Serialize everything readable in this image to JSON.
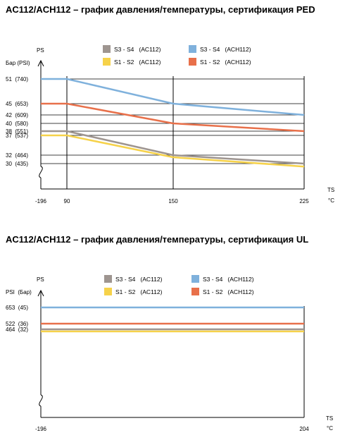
{
  "colors": {
    "s34_ac112": "#9e9590",
    "s34_ach112": "#7fb1dc",
    "s12_ac112": "#f6d24a",
    "s12_ach112": "#e8704a",
    "axis": "#000000"
  },
  "chart_data": [
    {
      "type": "line",
      "title": "AC112/ACH112 – график давления/температуры, сертификация PED",
      "y_axis_name": "PS",
      "y_axis_unit": "Бар (PSI)",
      "x_axis_name": "TS",
      "x_axis_unit": "°C",
      "x_ticks": [
        {
          "value": -196,
          "label": "-196"
        },
        {
          "value": 90,
          "label": "90"
        },
        {
          "value": 150,
          "label": "150"
        },
        {
          "value": 225,
          "label": "225"
        }
      ],
      "y_ticks": [
        {
          "value": 51,
          "label": "51  (740)"
        },
        {
          "value": 45,
          "label": "45  (653)"
        },
        {
          "value": 42,
          "label": "42  (609)"
        },
        {
          "value": 40,
          "label": "40  (580)"
        },
        {
          "value": 38,
          "label": "38  (551)"
        },
        {
          "value": 37,
          "label": "37  (537)"
        },
        {
          "value": 32,
          "label": "32  (464)"
        },
        {
          "value": 30,
          "label": "30  (435)"
        }
      ],
      "legend": [
        {
          "label": "S3 - S4   (AC112)",
          "color_key": "s34_ac112"
        },
        {
          "label": "S3 - S4   (ACH112)",
          "color_key": "s34_ach112"
        },
        {
          "label": "S1 - S2   (AC112)",
          "color_key": "s12_ac112"
        },
        {
          "label": "S1 - S2   (ACH112)",
          "color_key": "s12_ach112"
        }
      ],
      "series": [
        {
          "color_key": "s34_ach112",
          "x": [
            -196,
            90,
            150,
            225
          ],
          "y": [
            51,
            51,
            45,
            42
          ]
        },
        {
          "color_key": "s12_ach112",
          "x": [
            -196,
            90,
            150,
            225
          ],
          "y": [
            45,
            45,
            40,
            38
          ]
        },
        {
          "color_key": "s34_ac112",
          "x": [
            -196,
            90,
            150,
            225
          ],
          "y": [
            38,
            38,
            32,
            30
          ]
        },
        {
          "color_key": "s12_ac112",
          "x": [
            -196,
            90,
            150,
            225
          ],
          "y": [
            37,
            37,
            31.5,
            29.7
          ]
        }
      ]
    },
    {
      "type": "line",
      "title": "AC112/ACH112 – график давления/температуры, сертификация UL",
      "y_axis_name": "PS",
      "y_axis_unit": "PSI  (Бар)",
      "x_axis_name": "TS",
      "x_axis_unit": "°C",
      "x_ticks": [
        {
          "value": -196,
          "label": "-196"
        },
        {
          "value": 204,
          "label": "204"
        }
      ],
      "y_ticks": [
        {
          "value": 653,
          "label": "653  (45)"
        },
        {
          "value": 522,
          "label": "522  (36)"
        },
        {
          "value": 464,
          "label": "464  (32)"
        }
      ],
      "legend": [
        {
          "label": "S3 - S4   (AC112)",
          "color_key": "s34_ac112"
        },
        {
          "label": "S3 - S4   (ACH112)",
          "color_key": "s34_ach112"
        },
        {
          "label": "S1 - S2   (AC112)",
          "color_key": "s12_ac112"
        },
        {
          "label": "S1 - S2   (ACH112)",
          "color_key": "s12_ach112"
        }
      ],
      "series": [
        {
          "color_key": "s34_ach112",
          "x": [
            -196,
            204
          ],
          "y": [
            653,
            653
          ]
        },
        {
          "color_key": "s12_ach112",
          "x": [
            -196,
            204
          ],
          "y": [
            522,
            522
          ]
        },
        {
          "color_key": "s34_ac112",
          "x": [
            -196,
            204
          ],
          "y": [
            464,
            464
          ]
        },
        {
          "color_key": "s12_ac112",
          "x": [
            -196,
            204
          ],
          "y": [
            450,
            450
          ]
        }
      ]
    }
  ]
}
